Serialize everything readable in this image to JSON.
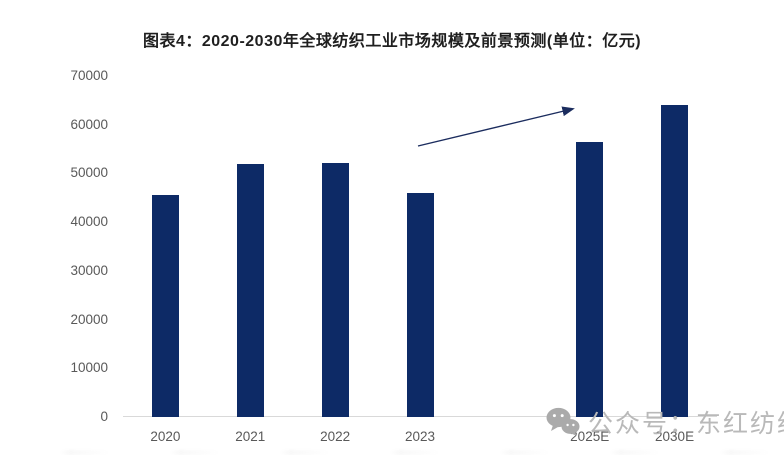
{
  "page": {
    "title": "图表4：2020-2030年全球纺织工业市场规模及前景预测(单位：亿元)"
  },
  "watermark": {
    "icon": "wechat-logo-icon",
    "text": "公众号：东红纺织",
    "color": "#b9b9b9"
  },
  "chart_data": {
    "type": "bar",
    "title": "图表4：2020-2030年全球纺织工业市场规模及前景预测(单位：亿元)",
    "unit": "亿元",
    "categories": [
      "2020",
      "2021",
      "2022",
      "2023",
      "2025E",
      "2030E"
    ],
    "values": [
      45600,
      52000,
      52200,
      45900,
      56400,
      64000
    ],
    "xlabel": "",
    "ylabel": "",
    "ylim": [
      0,
      70000
    ],
    "yticks": [
      0,
      10000,
      20000,
      30000,
      40000,
      50000,
      60000,
      70000
    ],
    "grid": false,
    "legend_position": "none",
    "bar_color": "#0d2a66",
    "axis_line_color": "#d9d9d9",
    "tick_label_color": "#595959",
    "layout_hint": {
      "num_slots": 7,
      "slot_indices": [
        0,
        1,
        2,
        3,
        5,
        6
      ],
      "gap_note": "empty slot between 2023 and 2025E"
    },
    "annotation": {
      "type": "trend-arrow",
      "from": [
        418,
        146
      ],
      "to": [
        564,
        111
      ],
      "color": "#1b2c5e"
    }
  }
}
